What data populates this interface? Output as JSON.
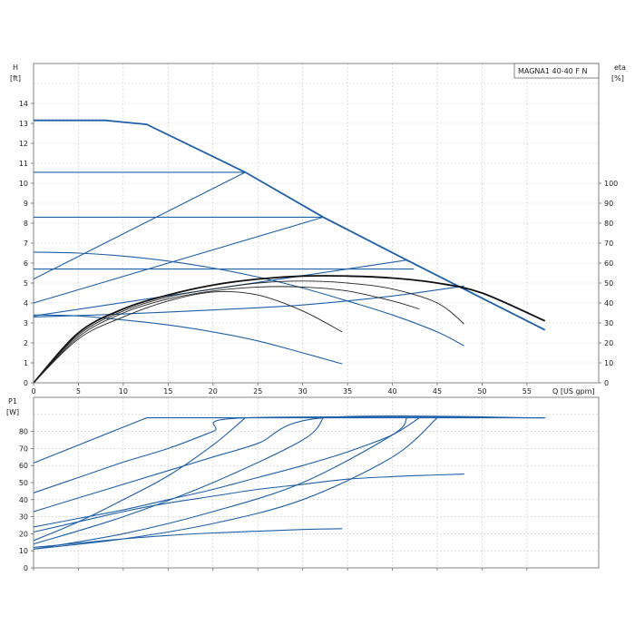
{
  "chart_data": [
    {
      "type": "line",
      "model_label": "MAGNA1 40-40 F N",
      "xlabel": "Q [US gpm]",
      "ylabel_h_line1": "H",
      "ylabel_h_line2": "[ft]",
      "ylabel_eta_line1": "eta",
      "ylabel_eta_line2": "[%]",
      "x_ticks": [
        "0",
        "5",
        "10",
        "15",
        "20",
        "25",
        "30",
        "35",
        "40",
        "45",
        "50",
        "55"
      ],
      "h_ticks": [
        "0",
        "1",
        "2",
        "3",
        "4",
        "5",
        "6",
        "7",
        "8",
        "9",
        "10",
        "11",
        "12",
        "13",
        "14"
      ],
      "eta_ticks": [
        "0",
        "10",
        "20",
        "30",
        "40",
        "50",
        "60",
        "70",
        "80",
        "90",
        "100"
      ],
      "xlim": [
        0,
        63
      ],
      "h_lim": [
        0,
        16
      ],
      "eta_lim": [
        0,
        100
      ],
      "grid": true,
      "head_curves": [
        {
          "x": [
            0,
            8,
            12.6,
            23.6,
            32.3,
            41.6,
            57
          ],
          "y": [
            13.15,
            13.15,
            12.95,
            10.55,
            8.3,
            6.15,
            2.65
          ],
          "max": true
        },
        {
          "x": [
            0,
            5,
            10,
            15,
            20,
            25,
            30,
            35,
            40,
            45,
            48
          ],
          "y": [
            6.55,
            6.5,
            6.35,
            6.1,
            5.75,
            5.3,
            4.75,
            4.1,
            3.4,
            2.55,
            1.85
          ]
        },
        {
          "x": [
            0,
            5,
            10,
            15,
            20,
            25,
            30,
            34.4
          ],
          "y": [
            3.4,
            3.35,
            3.15,
            2.9,
            2.55,
            2.1,
            1.5,
            0.95
          ]
        },
        {
          "x": [
            0,
            23.6
          ],
          "y": [
            10.55,
            10.55
          ]
        },
        {
          "x": [
            0,
            32.3
          ],
          "y": [
            8.3,
            8.3
          ]
        },
        {
          "x": [
            0,
            42.4
          ],
          "y": [
            5.7,
            5.7
          ]
        },
        {
          "x": [
            0,
            23.6
          ],
          "y": [
            5.2,
            10.55
          ]
        },
        {
          "x": [
            0,
            32.3
          ],
          "y": [
            4.0,
            8.3
          ]
        },
        {
          "x": [
            0,
            41.6
          ],
          "y": [
            3.35,
            6.15
          ]
        },
        {
          "x": [
            0,
            10,
            20,
            30,
            40,
            48
          ],
          "y": [
            3.3,
            3.45,
            3.65,
            3.9,
            4.35,
            4.85
          ]
        }
      ],
      "eta_curves": [
        {
          "x": [
            0,
            5,
            10,
            15,
            20,
            25,
            30,
            35,
            40,
            45,
            50,
            57
          ],
          "y": [
            0,
            25,
            37,
            44,
            49,
            52,
            53.5,
            53.5,
            52.5,
            50,
            45,
            31
          ],
          "max": true
        },
        {
          "x": [
            0,
            5,
            10,
            15,
            20,
            25,
            30,
            35,
            40,
            45,
            48
          ],
          "y": [
            0,
            24,
            36,
            43,
            47,
            50,
            51,
            50,
            47,
            40,
            29.5
          ]
        },
        {
          "x": [
            0,
            5,
            10,
            15,
            20,
            25,
            30,
            35,
            40,
            43
          ],
          "y": [
            0,
            23,
            35,
            42,
            46,
            48,
            48,
            46,
            41,
            37
          ]
        },
        {
          "x": [
            0,
            5,
            10,
            15,
            20,
            25,
            30,
            34.4
          ],
          "y": [
            0,
            22,
            33,
            41,
            45.5,
            44,
            36,
            25.5
          ]
        }
      ]
    },
    {
      "type": "line",
      "xlabel": "",
      "ylabel_p_line1": "P1",
      "ylabel_p_line2": "[W]",
      "p_ticks": [
        "0",
        "10",
        "20",
        "30",
        "40",
        "50",
        "60",
        "70",
        "80"
      ],
      "xlim": [
        0,
        63
      ],
      "p_lim": [
        0,
        100
      ],
      "grid": true,
      "power_curves": [
        {
          "x": [
            0,
            12.6,
            57
          ],
          "y": [
            61.5,
            88,
            88
          ]
        },
        {
          "x": [
            0,
            5,
            10,
            15,
            20,
            23.6,
            57
          ],
          "y": [
            44,
            53,
            62,
            70,
            80,
            88,
            88
          ]
        },
        {
          "x": [
            0,
            5,
            10,
            15,
            20,
            25,
            32.3,
            57
          ],
          "y": [
            33,
            41,
            49,
            57,
            65,
            73,
            88,
            88
          ]
        },
        {
          "x": [
            0,
            5,
            10,
            15,
            20,
            25,
            30,
            35,
            40,
            43
          ],
          "y": [
            24,
            29,
            34,
            40,
            46,
            53,
            60,
            68,
            78,
            88
          ]
        },
        {
          "x": [
            0,
            5,
            10,
            15,
            20,
            25,
            30,
            35,
            40,
            45,
            48
          ],
          "y": [
            21,
            27,
            33,
            38,
            42,
            46,
            49,
            52,
            53.5,
            54.5,
            55
          ]
        },
        {
          "x": [
            0,
            5,
            10,
            15,
            20,
            25,
            30,
            34.4
          ],
          "y": [
            12,
            14.5,
            17,
            19,
            20.5,
            21.5,
            22.5,
            23
          ]
        },
        {
          "x": [
            0,
            5,
            10,
            15,
            20,
            23.6
          ],
          "y": [
            16,
            27,
            40,
            54,
            72,
            88
          ]
        },
        {
          "x": [
            0,
            10,
            20,
            30,
            32.3
          ],
          "y": [
            14,
            30,
            50,
            75,
            88
          ]
        },
        {
          "x": [
            0,
            10,
            20,
            30,
            40,
            41.6
          ],
          "y": [
            11,
            20,
            33,
            50,
            78,
            88
          ]
        },
        {
          "x": [
            0,
            10,
            20,
            30,
            40,
            45
          ],
          "y": [
            11,
            17,
            26,
            40,
            65,
            88
          ]
        }
      ]
    }
  ]
}
